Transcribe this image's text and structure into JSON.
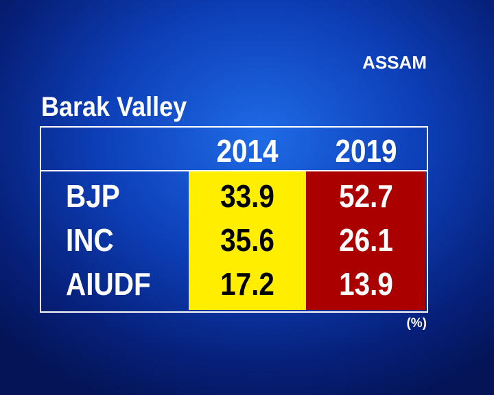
{
  "region": "ASSAM",
  "title": "Barak Valley",
  "table": {
    "columns": [
      "2014",
      "2019"
    ],
    "rows": [
      {
        "party": "BJP",
        "values": [
          33.9,
          52.7
        ]
      },
      {
        "party": "INC",
        "values": [
          35.6,
          26.1
        ]
      },
      {
        "party": "AIUDF",
        "values": [
          17.2,
          13.9
        ]
      }
    ]
  },
  "unit": "(%)"
}
